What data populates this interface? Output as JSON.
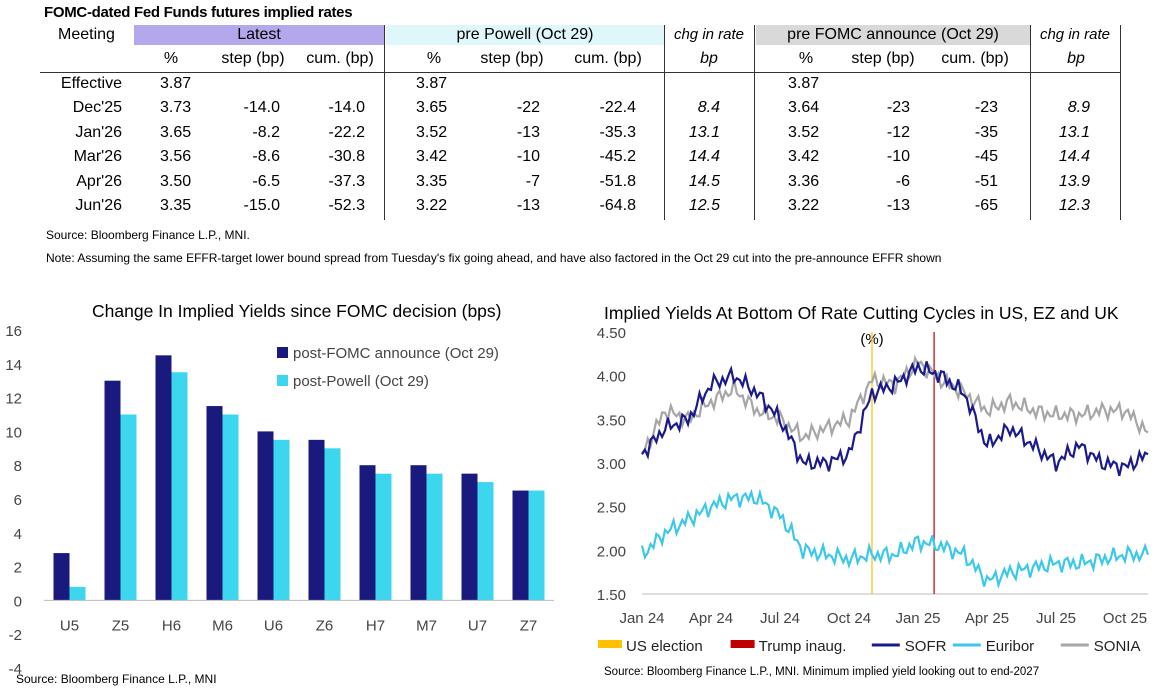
{
  "table": {
    "title": "FOMC-dated Fed Funds futures implied rates",
    "meeting_label": "Meeting",
    "groups": [
      {
        "label": "Latest",
        "color": "#B4A7EC"
      },
      {
        "label": "pre Powell (Oct 29)",
        "color": "#DFF6FA"
      },
      {
        "label": "chg in rate",
        "italic": true
      },
      {
        "label": "pre FOMC announce (Oct 29)",
        "color": "#D9D9D9"
      },
      {
        "label": "chg in rate",
        "italic": true
      }
    ],
    "subheaders": [
      "%",
      "step (bp)",
      "cum. (bp)",
      "%",
      "step (bp)",
      "cum. (bp)",
      "bp",
      "%",
      "step (bp)",
      "cum. (bp)",
      "bp"
    ],
    "rows": [
      [
        "Effective",
        "3.87",
        "",
        "",
        "3.87",
        "",
        "",
        "",
        "3.87",
        "",
        "",
        ""
      ],
      [
        "Dec'25",
        "3.73",
        "-14.0",
        "-14.0",
        "3.65",
        "-22",
        "-22.4",
        "8.4",
        "3.64",
        "-23",
        "-23",
        "8.9"
      ],
      [
        "Jan'26",
        "3.65",
        "-8.2",
        "-22.2",
        "3.52",
        "-13",
        "-35.3",
        "13.1",
        "3.52",
        "-12",
        "-35",
        "13.1"
      ],
      [
        "Mar'26",
        "3.56",
        "-8.6",
        "-30.8",
        "3.42",
        "-10",
        "-45.2",
        "14.4",
        "3.42",
        "-10",
        "-45",
        "14.4"
      ],
      [
        "Apr'26",
        "3.50",
        "-6.5",
        "-37.3",
        "3.35",
        "-7",
        "-51.8",
        "14.5",
        "3.36",
        "-6",
        "-51",
        "13.9"
      ],
      [
        "Jun'26",
        "3.35",
        "-15.0",
        "-52.3",
        "3.22",
        "-13",
        "-64.8",
        "12.5",
        "3.22",
        "-13",
        "-65",
        "12.3"
      ]
    ],
    "source": "Source: Bloomberg Finance L.P., MNI.",
    "note": "Note: Assuming the same  EFFR-target lower bound spread from Tuesday's fix going ahead, and have also  factored in the Oct 29 cut into the pre-announce EFFR shown"
  },
  "chart_data": [
    {
      "type": "bar",
      "title": "Change In Implied Yields since FOMC decision (bps)",
      "categories": [
        "U5",
        "Z5",
        "H6",
        "M6",
        "U6",
        "Z6",
        "H7",
        "M7",
        "U7",
        "Z7"
      ],
      "series": [
        {
          "name": "post-FOMC announce (Oct 29)",
          "color": "#1A1A7E",
          "values": [
            2.8,
            13.0,
            14.5,
            11.5,
            10.0,
            9.5,
            8.0,
            8.0,
            7.5,
            6.5
          ]
        },
        {
          "name": "post-Powell (Oct 29)",
          "color": "#3CD6EE",
          "values": [
            0.8,
            11.0,
            13.5,
            11.0,
            9.5,
            9.0,
            7.5,
            7.5,
            7.0,
            6.5
          ]
        }
      ],
      "ylim": [
        -4,
        16
      ],
      "yticks": [
        -4,
        -2,
        0,
        2,
        4,
        6,
        8,
        10,
        12,
        14,
        16
      ],
      "legend_position": "top-right",
      "source": "Source: Bloomberg Finance L.P., MNI"
    },
    {
      "type": "line",
      "title": "Implied Yields At Bottom Of Rate Cutting Cycles in US, EZ and UK",
      "ylabel": "(%)",
      "ylim": [
        1.5,
        4.5
      ],
      "yticks": [
        "1.50",
        "2.00",
        "2.50",
        "3.00",
        "3.50",
        "4.00",
        "4.50"
      ],
      "xlim": [
        "2024-01",
        "2025-11"
      ],
      "xticks": [
        {
          "label": "Jan 24",
          "x": "2024-01"
        },
        {
          "label": "Apr 24",
          "x": "2024-04"
        },
        {
          "label": "Jul 24",
          "x": "2024-07"
        },
        {
          "label": "Oct 24",
          "x": "2024-10"
        },
        {
          "label": "Jan 25",
          "x": "2025-01"
        },
        {
          "label": "Apr 25",
          "x": "2025-04"
        },
        {
          "label": "Jul 25",
          "x": "2025-07"
        },
        {
          "label": "Oct 25",
          "x": "2025-10"
        }
      ],
      "events": [
        {
          "name": "US election",
          "color": "#FFC000",
          "x": "2024-11"
        },
        {
          "name": "Trump inaug.",
          "color": "#C00000",
          "x": "2025-01.7"
        }
      ],
      "series": [
        {
          "name": "SOFR",
          "color": "#1A1A8C",
          "x": [
            "2024-01",
            "2024-02",
            "2024-03",
            "2024-04",
            "2024-05",
            "2024-06",
            "2024-07",
            "2024-08",
            "2024-09",
            "2024-10",
            "2024-11",
            "2024-12",
            "2025-01",
            "2025-02",
            "2025-03",
            "2025-04",
            "2025-05",
            "2025-06",
            "2025-07",
            "2025-08",
            "2025-09",
            "2025-10",
            "2025-11"
          ],
          "y": [
            3.1,
            3.4,
            3.5,
            3.9,
            4.0,
            3.8,
            3.5,
            3.0,
            3.0,
            3.1,
            3.8,
            3.9,
            4.1,
            4.0,
            3.8,
            3.2,
            3.4,
            3.2,
            3.0,
            3.2,
            3.0,
            2.95,
            3.1
          ]
        },
        {
          "name": "Euribor",
          "color": "#3CC8E8",
          "x": [
            "2024-01",
            "2024-02",
            "2024-03",
            "2024-04",
            "2024-05",
            "2024-06",
            "2024-07",
            "2024-08",
            "2024-09",
            "2024-10",
            "2024-11",
            "2024-12",
            "2025-01",
            "2025-02",
            "2025-03",
            "2025-04",
            "2025-05",
            "2025-06",
            "2025-07",
            "2025-08",
            "2025-09",
            "2025-10",
            "2025-11"
          ],
          "y": [
            1.95,
            2.2,
            2.35,
            2.5,
            2.6,
            2.6,
            2.4,
            2.0,
            1.95,
            1.9,
            1.95,
            1.95,
            2.1,
            2.05,
            1.95,
            1.65,
            1.75,
            1.8,
            1.85,
            1.85,
            1.9,
            1.95,
            1.95
          ]
        },
        {
          "name": "SONIA",
          "color": "#A6A6A6",
          "x": [
            "2024-01",
            "2024-02",
            "2024-03",
            "2024-04",
            "2024-05",
            "2024-06",
            "2024-07",
            "2024-08",
            "2024-09",
            "2024-10",
            "2024-11",
            "2024-12",
            "2025-01",
            "2025-02",
            "2025-03",
            "2025-04",
            "2025-05",
            "2025-06",
            "2025-07",
            "2025-08",
            "2025-09",
            "2025-10",
            "2025-11"
          ],
          "y": [
            3.1,
            3.6,
            3.5,
            3.7,
            3.85,
            3.6,
            3.5,
            3.3,
            3.4,
            3.5,
            3.95,
            3.9,
            4.15,
            3.95,
            3.8,
            3.6,
            3.7,
            3.6,
            3.55,
            3.55,
            3.6,
            3.6,
            3.35
          ]
        }
      ],
      "legend_position": "bottom",
      "source": "Source: Bloomberg Finance L.P., MNI. Minimum implied yield looking out to end-2027"
    }
  ]
}
